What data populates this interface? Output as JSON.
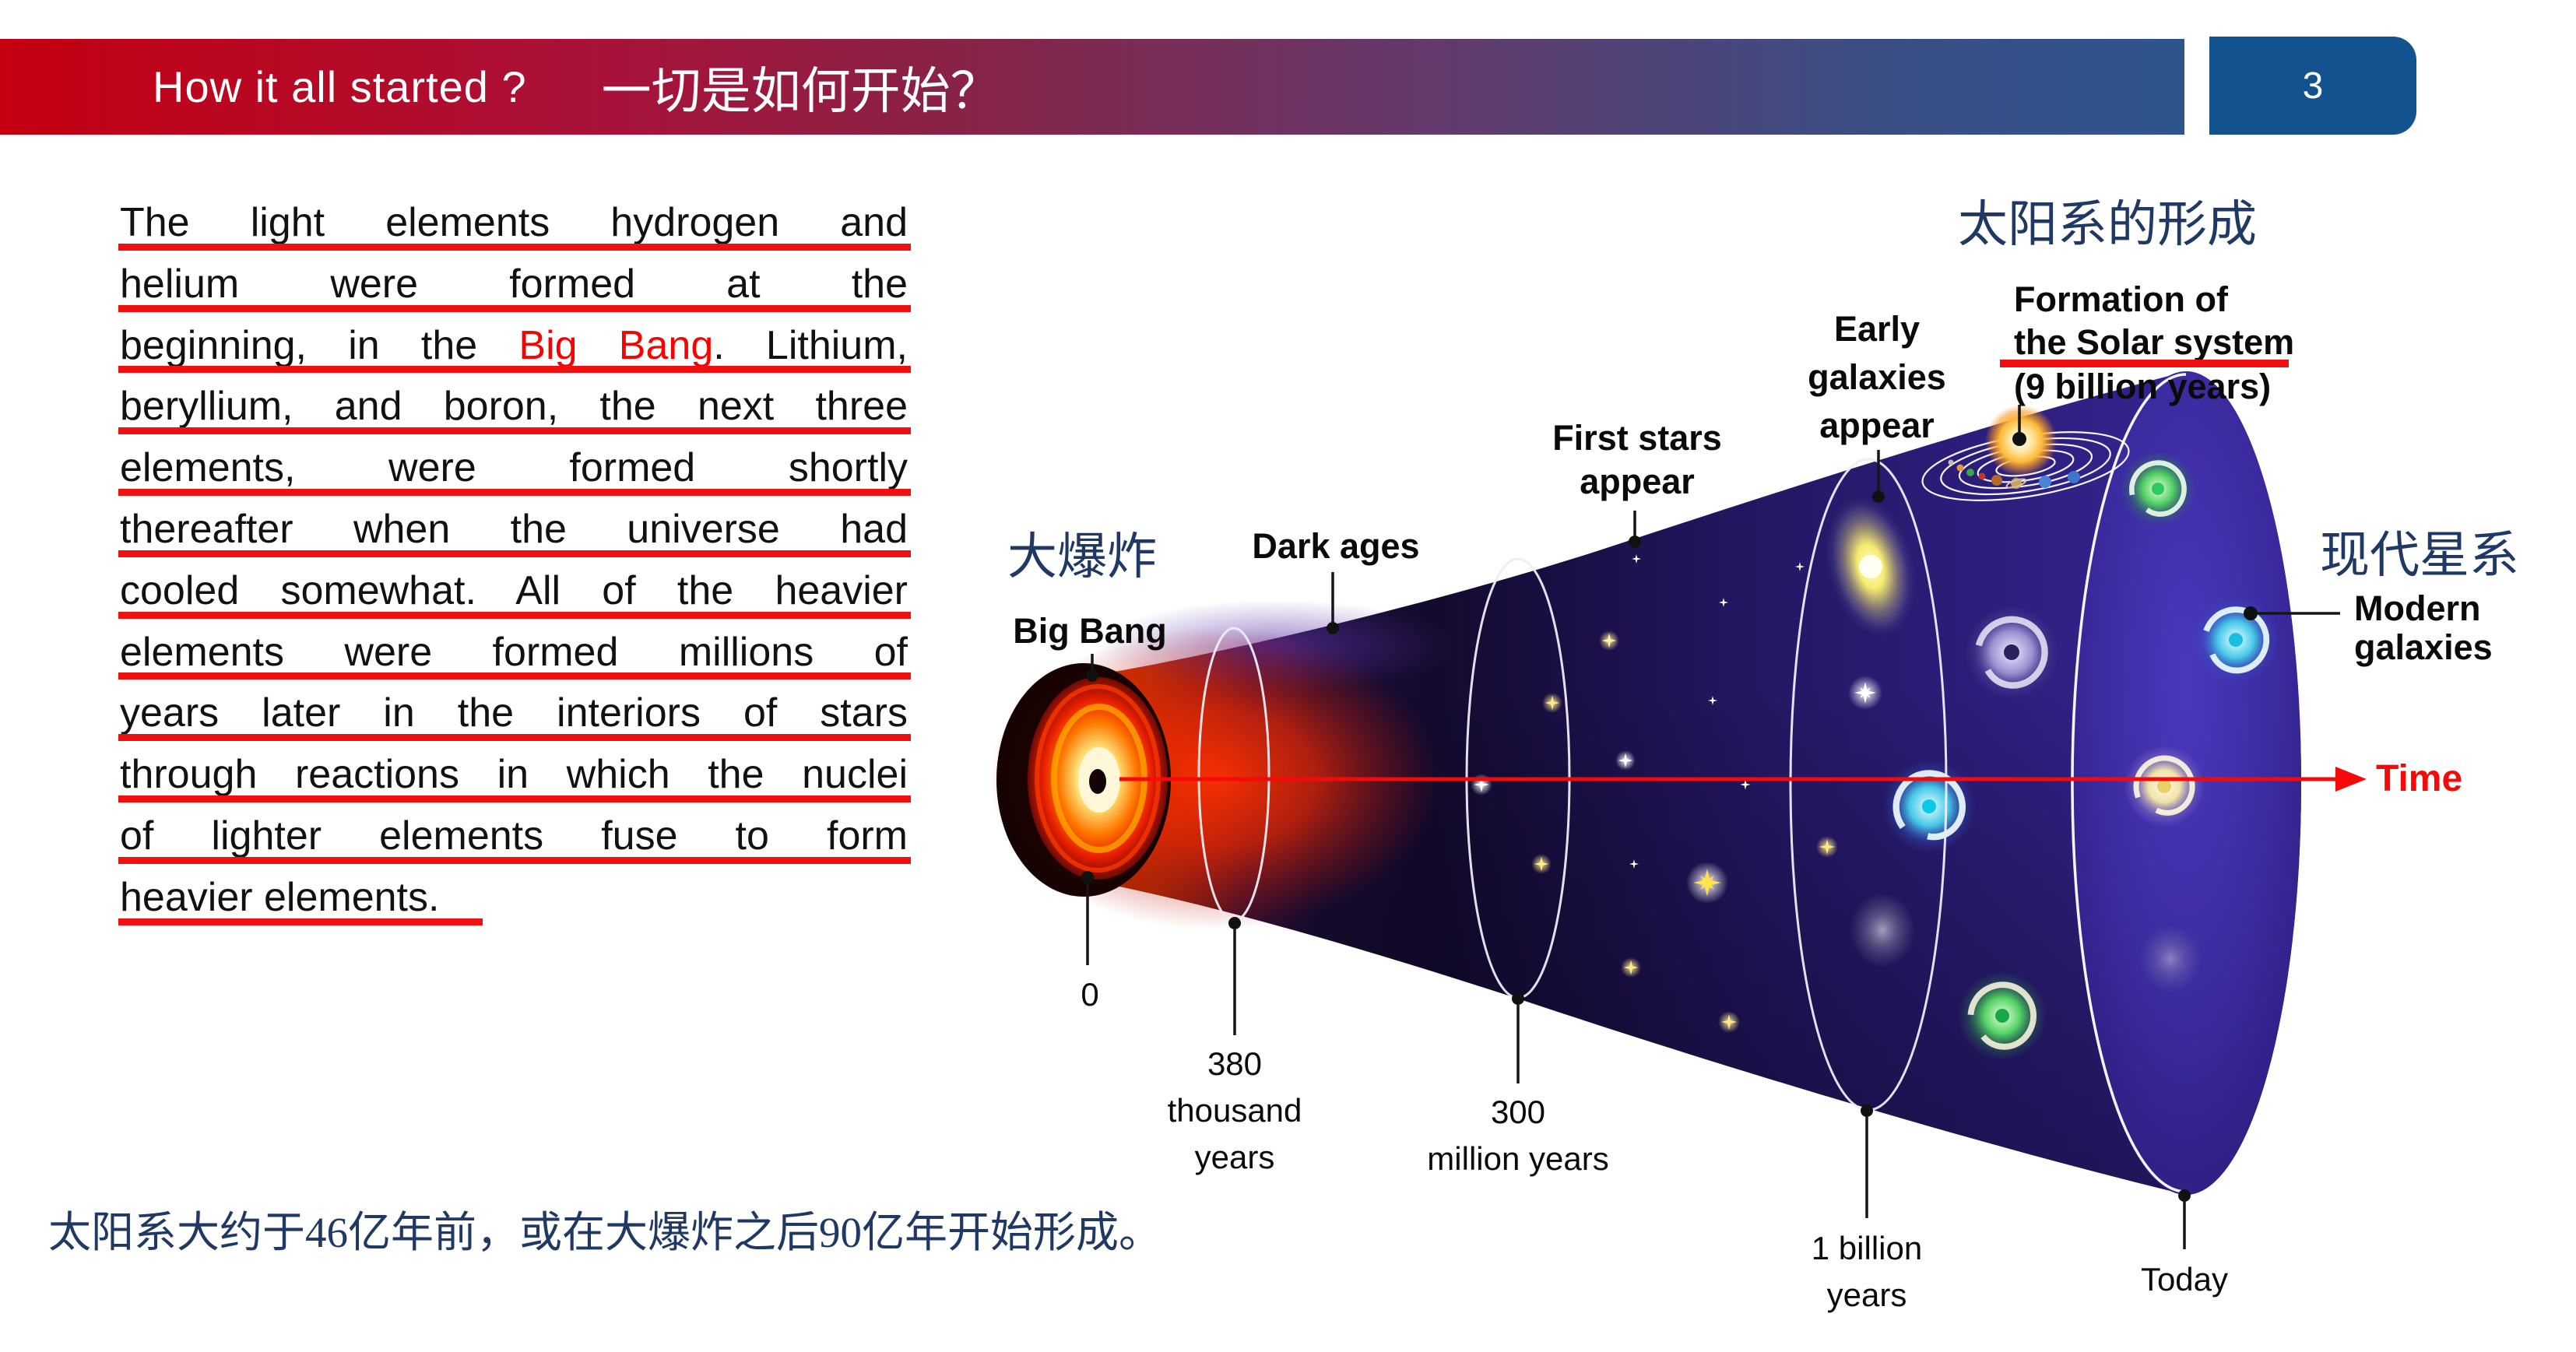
{
  "header": {
    "title_en": "How it all started ?",
    "title_zh": "一切是如何开始？",
    "page_number": "3"
  },
  "paragraph": {
    "lines": [
      {
        "full": true,
        "segments": [
          {
            "t": "The light elements hydrogen and"
          }
        ]
      },
      {
        "full": true,
        "segments": [
          {
            "t": "helium were formed at the"
          }
        ]
      },
      {
        "full": true,
        "segments": [
          {
            "t": "beginning, in the "
          },
          {
            "t": "Big Bang",
            "red": true
          },
          {
            "t": ". Lithium,"
          }
        ]
      },
      {
        "full": true,
        "segments": [
          {
            "t": "beryllium, and boron, the next three"
          }
        ]
      },
      {
        "full": true,
        "segments": [
          {
            "t": "elements, were formed shortly"
          }
        ]
      },
      {
        "full": true,
        "segments": [
          {
            "t": "thereafter when the universe had"
          }
        ]
      },
      {
        "full": true,
        "segments": [
          {
            "t": "cooled somewhat. All of the heavier"
          }
        ]
      },
      {
        "full": true,
        "segments": [
          {
            "t": "elements were formed millions of"
          }
        ]
      },
      {
        "full": true,
        "segments": [
          {
            "t": "years later in the interiors of stars"
          }
        ]
      },
      {
        "full": true,
        "segments": [
          {
            "t": "through reactions in which the nuclei"
          }
        ]
      },
      {
        "full": true,
        "segments": [
          {
            "t": "of lighter elements fuse to form"
          }
        ]
      },
      {
        "full": false,
        "segments": [
          {
            "t": "heavier elements."
          }
        ]
      }
    ]
  },
  "diagram": {
    "big_bang_zh": "大爆炸",
    "big_bang": "Big Bang",
    "dark_ages": "Dark ages",
    "first_stars": [
      "First stars",
      "appear"
    ],
    "early_galaxies": [
      "Early",
      "galaxies",
      "appear"
    ],
    "solar_zh": "太阳系的形成",
    "formation": [
      "Formation of",
      "the Solar system",
      "(9 billion years)"
    ],
    "modern_zh": "现代星系",
    "modern": [
      "Modern",
      "galaxies"
    ],
    "time_label": "Time",
    "timeline": {
      "t0": "0",
      "t380": [
        "380",
        "thousand",
        "years"
      ],
      "t300": [
        "300",
        "million years"
      ],
      "t1b": [
        "1 billion",
        "years"
      ],
      "today": "Today"
    }
  },
  "footer": {
    "caption_zh": "太阳系大约于46亿年前，或在大爆炸之后90亿年开始形成。"
  },
  "colors": {
    "underline_red": "#F01010",
    "highlight_red": "#FA0000",
    "bar_gradient_left": "#C40010",
    "bar_gradient_right": "#2E548E",
    "page_box_blue": "#12528F",
    "label_navy": "#1F3864",
    "time_arrow_red": "#F50A0A",
    "cone_purple": "#342699"
  }
}
